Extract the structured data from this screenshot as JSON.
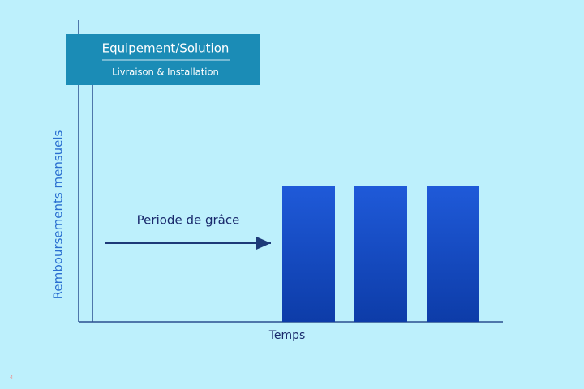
{
  "diagram": {
    "box": {
      "title": "Equipement/Solution",
      "subtitle": "Livraison & Installation"
    },
    "y_axis_label": "Remboursements mensuels",
    "x_axis_label": "Temps",
    "arrow_label": "Periode de grâce",
    "page_number": "4"
  }
}
